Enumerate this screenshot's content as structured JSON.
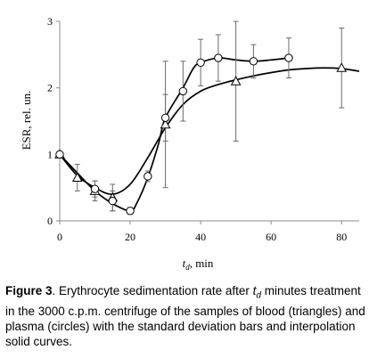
{
  "chart_data": {
    "type": "scatter",
    "xlabel_main": "t",
    "xlabel_sub": "d",
    "xlabel_unit": ", min",
    "ylabel": "ESR, rel. un.",
    "xlim": [
      0,
      85
    ],
    "ylim": [
      0,
      3
    ],
    "x_ticks": [
      0,
      20,
      40,
      60,
      80
    ],
    "y_ticks": [
      0,
      1,
      2,
      3
    ],
    "series": [
      {
        "marker": "triangle",
        "points": [
          {
            "x": 0,
            "y": 1.0,
            "err": 0.0
          },
          {
            "x": 5,
            "y": 0.65,
            "err": 0.2
          },
          {
            "x": 10,
            "y": 0.45,
            "err": 0.15
          },
          {
            "x": 15,
            "y": 0.35,
            "err": 0.2
          },
          {
            "x": 30,
            "y": 1.45,
            "err": 0.95
          },
          {
            "x": 50,
            "y": 2.1,
            "err": 0.9
          },
          {
            "x": 80,
            "y": 2.3,
            "err": 0.6
          }
        ],
        "curve": [
          [
            0,
            1.0
          ],
          [
            5,
            0.68
          ],
          [
            10,
            0.5
          ],
          [
            15,
            0.4
          ],
          [
            20,
            0.55
          ],
          [
            25,
            0.95
          ],
          [
            30,
            1.4
          ],
          [
            35,
            1.75
          ],
          [
            40,
            1.95
          ],
          [
            45,
            2.05
          ],
          [
            50,
            2.12
          ],
          [
            55,
            2.18
          ],
          [
            60,
            2.23
          ],
          [
            65,
            2.27
          ],
          [
            70,
            2.29
          ],
          [
            75,
            2.3
          ],
          [
            80,
            2.29
          ],
          [
            85,
            2.25
          ]
        ]
      },
      {
        "marker": "circle",
        "points": [
          {
            "x": 0,
            "y": 1.0,
            "err": 0.0
          },
          {
            "x": 10,
            "y": 0.48,
            "err": 0.12
          },
          {
            "x": 15,
            "y": 0.3,
            "err": 0.15
          },
          {
            "x": 20,
            "y": 0.15,
            "err": 0.05
          },
          {
            "x": 25,
            "y": 0.67,
            "err": 0.08
          },
          {
            "x": 30,
            "y": 1.55,
            "err": 0.35
          },
          {
            "x": 35,
            "y": 1.95,
            "err": 0.45
          },
          {
            "x": 40,
            "y": 2.38,
            "err": 0.35
          },
          {
            "x": 45,
            "y": 2.45,
            "err": 0.35
          },
          {
            "x": 55,
            "y": 2.4,
            "err": 0.25
          },
          {
            "x": 65,
            "y": 2.45,
            "err": 0.3
          }
        ],
        "curve": [
          [
            0,
            1.0
          ],
          [
            5,
            0.72
          ],
          [
            10,
            0.45
          ],
          [
            15,
            0.26
          ],
          [
            20,
            0.15
          ],
          [
            22,
            0.28
          ],
          [
            25,
            0.65
          ],
          [
            28,
            1.15
          ],
          [
            30,
            1.55
          ],
          [
            35,
            2.0
          ],
          [
            38,
            2.3
          ],
          [
            40,
            2.38
          ],
          [
            45,
            2.45
          ],
          [
            50,
            2.42
          ],
          [
            55,
            2.4
          ],
          [
            60,
            2.42
          ],
          [
            65,
            2.45
          ]
        ]
      }
    ]
  },
  "caption": {
    "figure_label": "Figure 3",
    "text_before_sub": ". Erythrocyte sedimentation rate after ",
    "t_var": "t",
    "t_sub": "d",
    "text_after_sub": " minutes treatment in the 3000 c.p.m. centrifuge of the samples of blood (triangles) and plasma (circles) with the standard deviation bars and interpolation solid curves."
  }
}
